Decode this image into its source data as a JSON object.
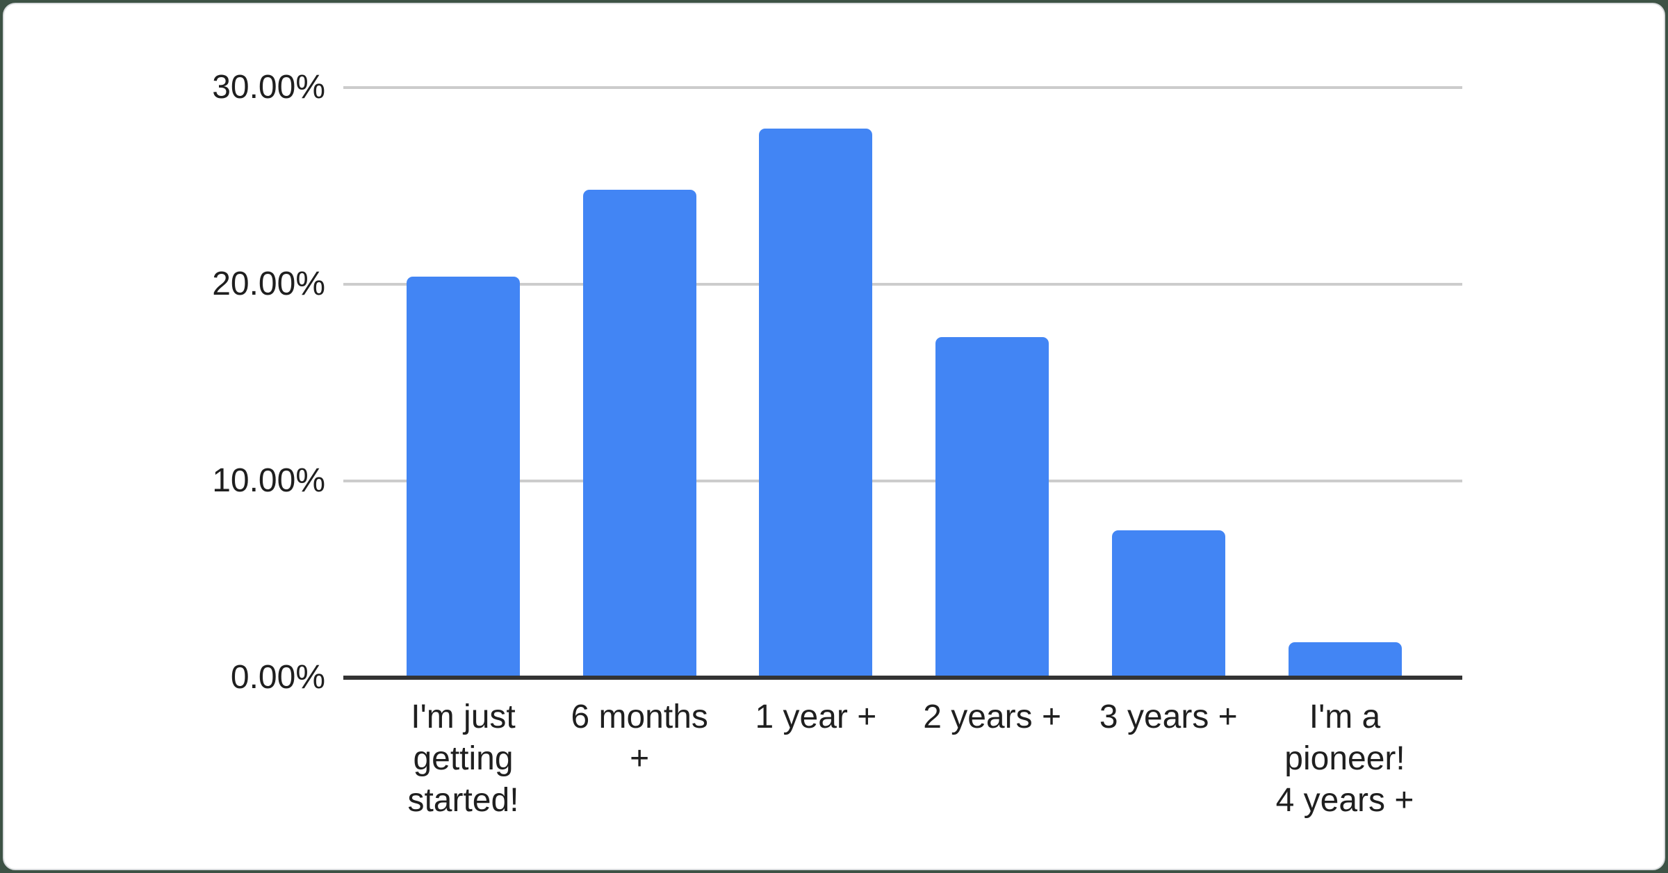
{
  "page": {
    "background_color": "#3d5245",
    "card_background": "#ffffff",
    "card_border_color": "#d9dcde"
  },
  "chart_data": {
    "type": "bar",
    "title": "",
    "xlabel": "",
    "ylabel": "",
    "categories": [
      "I'm just getting started!",
      "6 months +",
      "1 year +",
      "2 years +",
      "3 years +",
      "I'm a pioneer! 4 years +"
    ],
    "category_lines": [
      [
        "I'm just",
        "getting",
        "started!"
      ],
      [
        "6 months",
        "+"
      ],
      [
        "1 year +"
      ],
      [
        "2 years +"
      ],
      [
        "3 years +"
      ],
      [
        "I'm a",
        "pioneer!",
        "4 years +"
      ]
    ],
    "values": [
      20.4,
      24.8,
      27.9,
      17.3,
      7.5,
      1.8
    ],
    "unit": "%",
    "ylim": [
      0,
      30
    ],
    "yticks": [
      {
        "value": 0,
        "label": "0.00%"
      },
      {
        "value": 10,
        "label": "10.00%"
      },
      {
        "value": 20,
        "label": "20.00%"
      },
      {
        "value": 30,
        "label": "30.00%"
      }
    ],
    "grid": true,
    "legend": "none",
    "bar_color": "#4285f4",
    "gridline_color": "#cccccc",
    "axis_line_color": "#333333",
    "label_color": "#1f1f1f"
  }
}
